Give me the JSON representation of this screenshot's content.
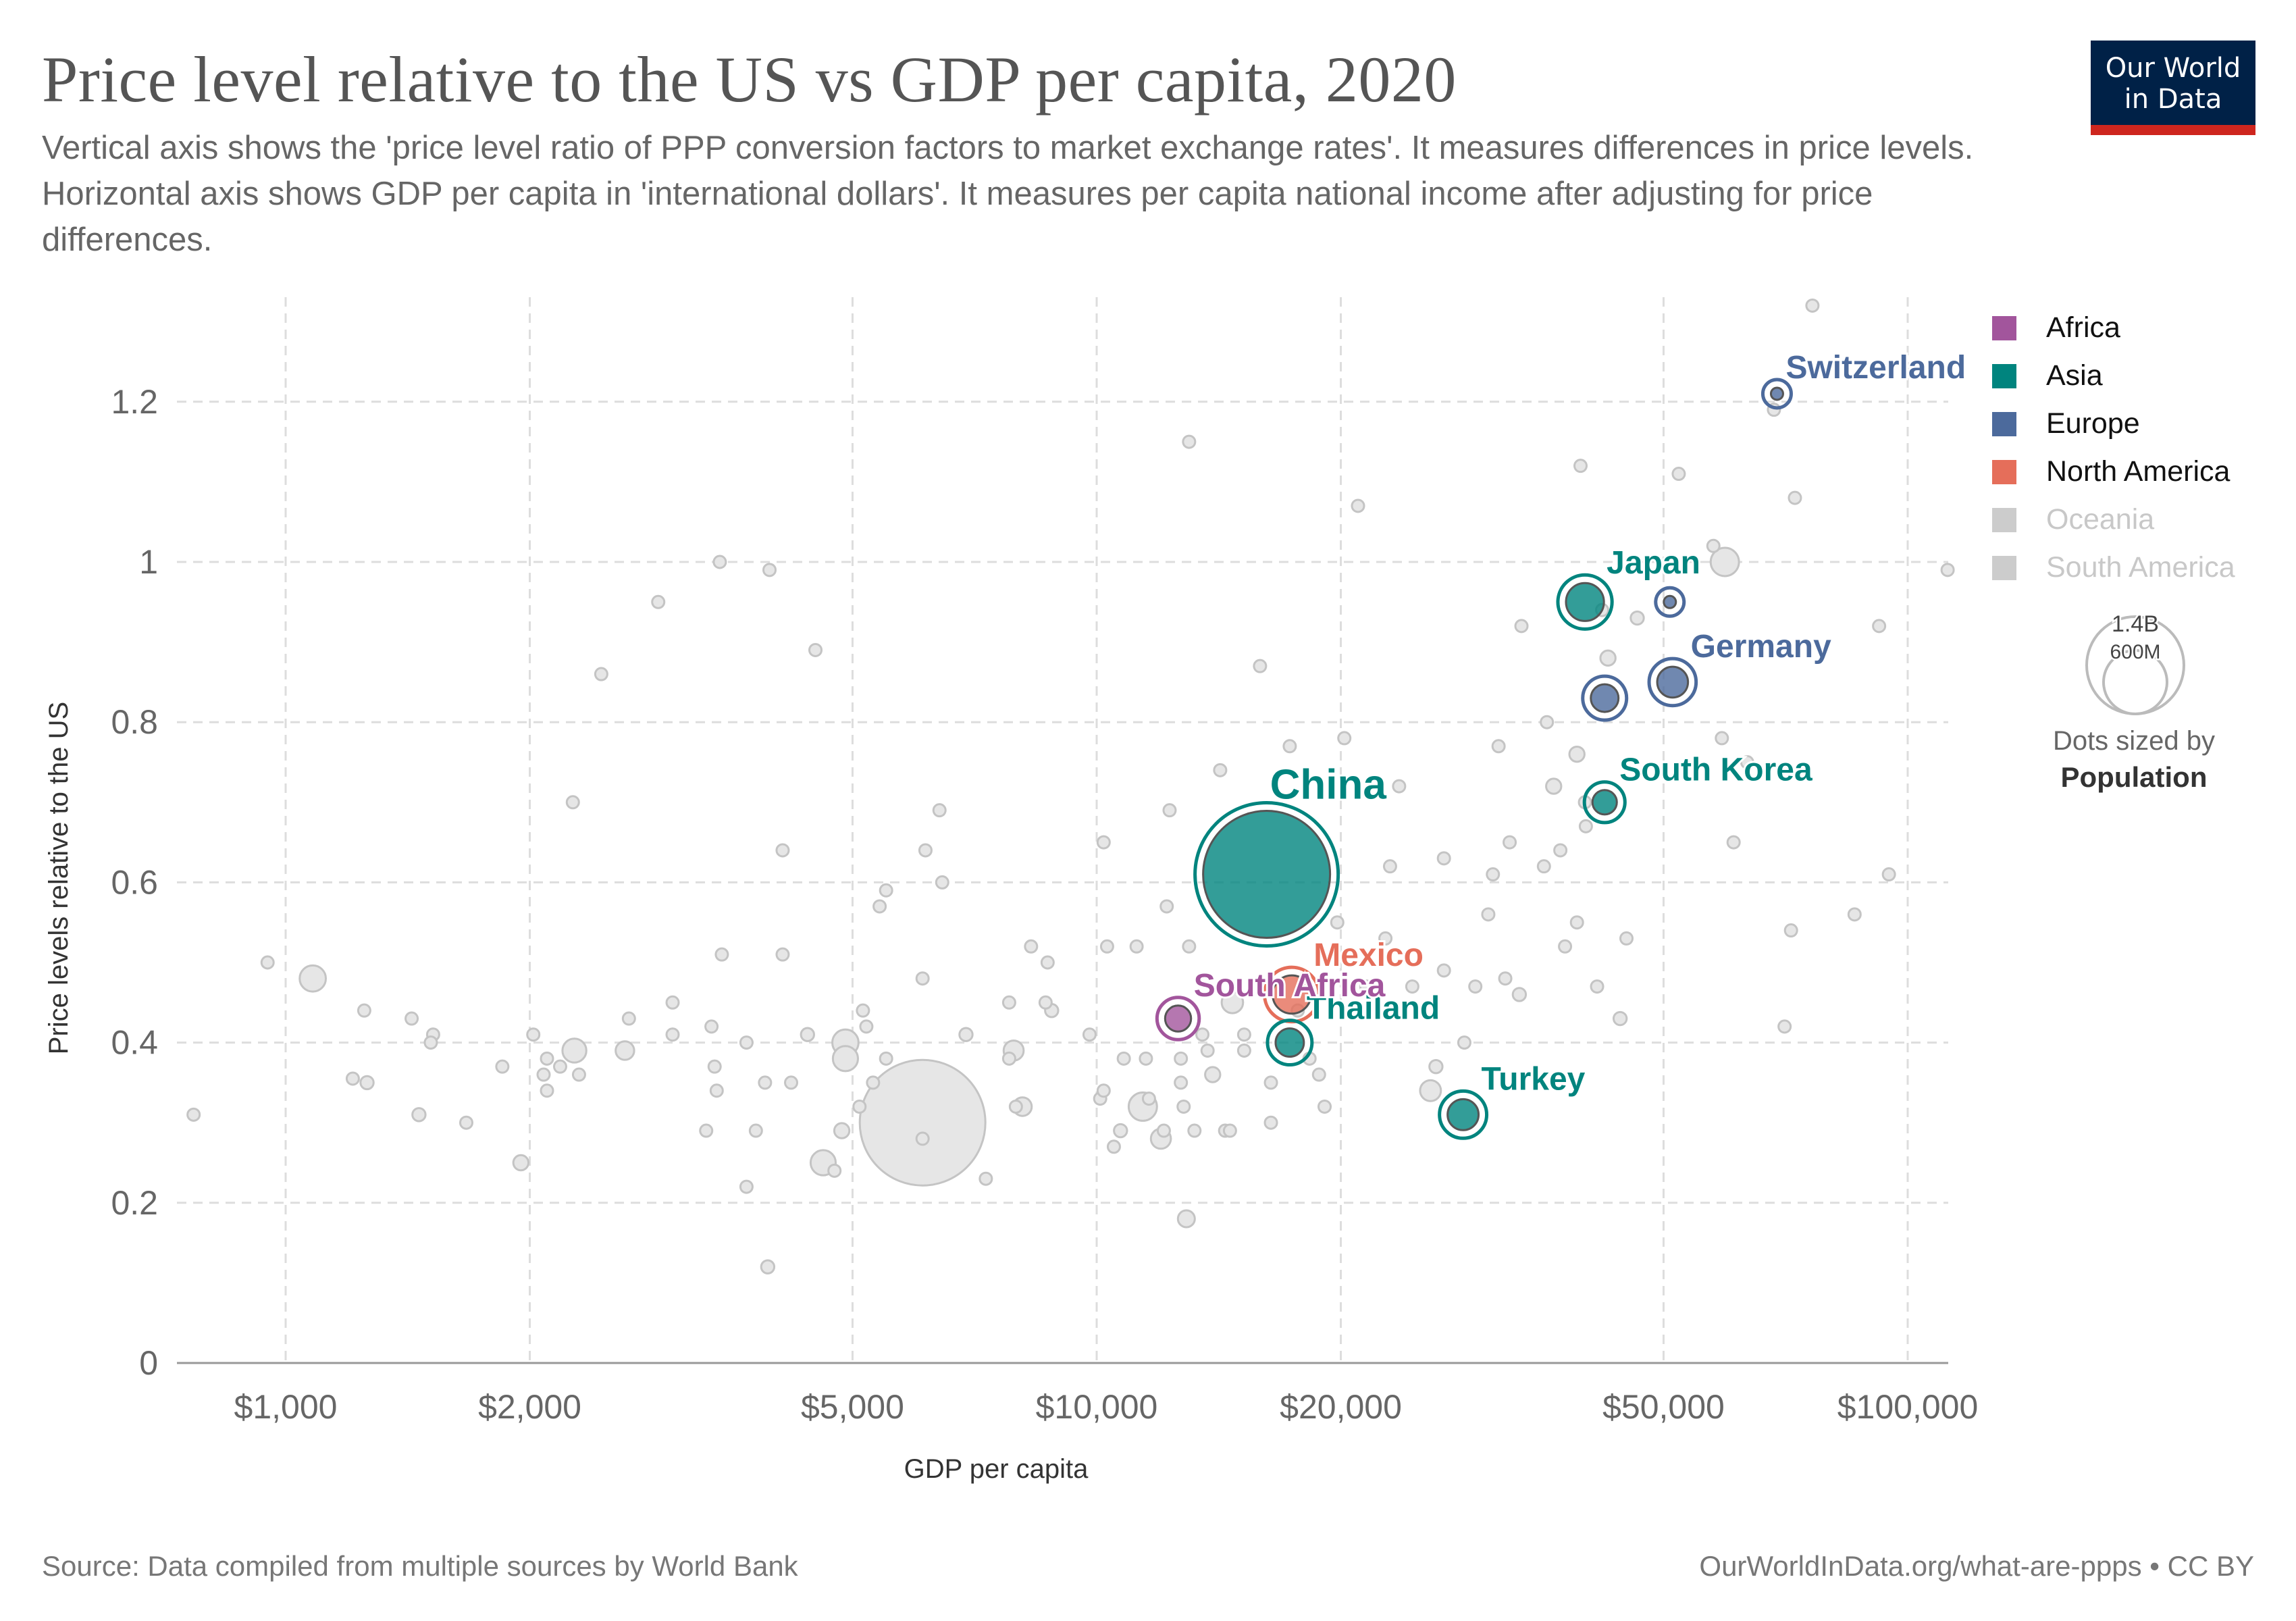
{
  "header": {
    "title": "Price level relative to the US vs GDP per capita, 2020",
    "subtitle": "Vertical axis shows the 'price level ratio of PPP conversion factors to market exchange rates'. It measures differences in price levels. Horizontal axis shows GDP per capita in 'international dollars'. It measures per capita national income after adjusting for price differences."
  },
  "logo": {
    "line1": "Our World",
    "line2": "in Data"
  },
  "footer": {
    "source": "Source: Data compiled from multiple sources by World Bank",
    "credit": "OurWorldInData.org/what-are-ppps • CC BY"
  },
  "chart_data": {
    "type": "scatter",
    "title": "Price level relative to the US vs GDP per capita, 2020",
    "xlabel": "GDP per capita",
    "ylabel": "Price levels relative to the US",
    "x_scale": "log",
    "xlim": [
      720,
      115000
    ],
    "ylim": [
      0,
      1.32
    ],
    "x_ticks": [
      1000,
      2000,
      5000,
      10000,
      20000,
      50000,
      100000
    ],
    "x_tick_labels": [
      "$1,000",
      "$2,000",
      "$5,000",
      "$10,000",
      "$20,000",
      "$50,000",
      "$100,000"
    ],
    "y_ticks": [
      0,
      0.2,
      0.4,
      0.6,
      0.8,
      1,
      1.2
    ],
    "y_tick_labels": [
      "0",
      "0.2",
      "0.4",
      "0.6",
      "0.8",
      "1",
      "1.2"
    ],
    "grid": true,
    "legend_position": "right",
    "legend": [
      {
        "name": "Africa",
        "color": "#a2559c",
        "active": true
      },
      {
        "name": "Asia",
        "color": "#00847e",
        "active": true
      },
      {
        "name": "Europe",
        "color": "#4c6a9c",
        "active": true
      },
      {
        "name": "North America",
        "color": "#e56e5a",
        "active": true
      },
      {
        "name": "Oceania",
        "color": "#cccccc",
        "active": false
      },
      {
        "name": "South America",
        "color": "#cccccc",
        "active": false
      }
    ],
    "size_legend": {
      "title": "Dots sized by",
      "variable": "Population",
      "large_label": "1.4B",
      "small_label": "600M"
    },
    "highlighted": [
      {
        "name": "Switzerland",
        "continent": "Europe",
        "x": 69000,
        "y": 1.21,
        "pop": 8.6,
        "label": true
      },
      {
        "name": "Japan",
        "continent": "Asia",
        "x": 40000,
        "y": 0.95,
        "pop": 126,
        "label": true
      },
      {
        "name": "Germany",
        "continent": "Europe",
        "x": 51300,
        "y": 0.85,
        "pop": 83,
        "label": true
      },
      {
        "name": "",
        "continent": "Europe",
        "x": 42300,
        "y": 0.83,
        "pop": 67,
        "label": false
      },
      {
        "name": "",
        "continent": "Europe",
        "x": 50900,
        "y": 0.95,
        "pop": 10,
        "label": false
      },
      {
        "name": "South Korea",
        "continent": "Asia",
        "x": 42300,
        "y": 0.7,
        "pop": 52,
        "label": true
      },
      {
        "name": "China",
        "continent": "Asia",
        "x": 16200,
        "y": 0.61,
        "pop": 1410,
        "label": true
      },
      {
        "name": "Mexico",
        "continent": "North America",
        "x": 17400,
        "y": 0.46,
        "pop": 128,
        "label": true
      },
      {
        "name": "South Africa",
        "continent": "Africa",
        "x": 12600,
        "y": 0.43,
        "pop": 59,
        "label": true
      },
      {
        "name": "Thailand",
        "continent": "Asia",
        "x": 17300,
        "y": 0.4,
        "pop": 70,
        "label": true
      },
      {
        "name": "Turkey",
        "continent": "Asia",
        "x": 28300,
        "y": 0.31,
        "pop": 84,
        "label": true
      }
    ],
    "background_points": [
      {
        "x": 770,
        "y": 0.31,
        "pop": 12
      },
      {
        "x": 950,
        "y": 0.5,
        "pop": 12
      },
      {
        "x": 1080,
        "y": 0.48,
        "pop": 60
      },
      {
        "x": 1250,
        "y": 0.44,
        "pop": 12
      },
      {
        "x": 1210,
        "y": 0.355,
        "pop": 10
      },
      {
        "x": 1260,
        "y": 0.35,
        "pop": 15
      },
      {
        "x": 1430,
        "y": 0.43,
        "pop": 12
      },
      {
        "x": 1520,
        "y": 0.41,
        "pop": 12
      },
      {
        "x": 1510,
        "y": 0.4,
        "pop": 12
      },
      {
        "x": 1460,
        "y": 0.31,
        "pop": 15
      },
      {
        "x": 1670,
        "y": 0.3,
        "pop": 12
      },
      {
        "x": 1850,
        "y": 0.37,
        "pop": 12
      },
      {
        "x": 1950,
        "y": 0.25,
        "pop": 20
      },
      {
        "x": 2020,
        "y": 0.41,
        "pop": 12
      },
      {
        "x": 2080,
        "y": 0.36,
        "pop": 12
      },
      {
        "x": 2100,
        "y": 0.38,
        "pop": 12
      },
      {
        "x": 2100,
        "y": 0.34,
        "pop": 10
      },
      {
        "x": 2180,
        "y": 0.37,
        "pop": 12
      },
      {
        "x": 2270,
        "y": 0.39,
        "pop": 50
      },
      {
        "x": 2300,
        "y": 0.36,
        "pop": 10
      },
      {
        "x": 2260,
        "y": 0.7,
        "pop": 10
      },
      {
        "x": 2450,
        "y": 0.86,
        "pop": 10
      },
      {
        "x": 2620,
        "y": 0.39,
        "pop": 30
      },
      {
        "x": 2650,
        "y": 0.43,
        "pop": 10
      },
      {
        "x": 2880,
        "y": 0.95,
        "pop": 10
      },
      {
        "x": 3000,
        "y": 0.45,
        "pop": 10
      },
      {
        "x": 3000,
        "y": 0.41,
        "pop": 10
      },
      {
        "x": 3300,
        "y": 0.29,
        "pop": 10
      },
      {
        "x": 3350,
        "y": 0.42,
        "pop": 10
      },
      {
        "x": 3380,
        "y": 0.37,
        "pop": 10
      },
      {
        "x": 3400,
        "y": 0.34,
        "pop": 10
      },
      {
        "x": 3450,
        "y": 0.51,
        "pop": 10
      },
      {
        "x": 3430,
        "y": 1.0,
        "pop": 10
      },
      {
        "x": 3700,
        "y": 0.4,
        "pop": 12
      },
      {
        "x": 3700,
        "y": 0.22,
        "pop": 10
      },
      {
        "x": 3800,
        "y": 0.29,
        "pop": 12
      },
      {
        "x": 3900,
        "y": 0.35,
        "pop": 10
      },
      {
        "x": 3950,
        "y": 0.99,
        "pop": 10
      },
      {
        "x": 3930,
        "y": 0.12,
        "pop": 15
      },
      {
        "x": 4100,
        "y": 0.64,
        "pop": 10
      },
      {
        "x": 4100,
        "y": 0.51,
        "pop": 10
      },
      {
        "x": 4200,
        "y": 0.35,
        "pop": 10
      },
      {
        "x": 4400,
        "y": 0.41,
        "pop": 15
      },
      {
        "x": 4500,
        "y": 0.89,
        "pop": 10
      },
      {
        "x": 4600,
        "y": 0.25,
        "pop": 55
      },
      {
        "x": 4750,
        "y": 0.24,
        "pop": 10
      },
      {
        "x": 4900,
        "y": 0.4,
        "pop": 60
      },
      {
        "x": 4900,
        "y": 0.38,
        "pop": 55
      },
      {
        "x": 4850,
        "y": 0.29,
        "pop": 20
      },
      {
        "x": 5100,
        "y": 0.32,
        "pop": 10
      },
      {
        "x": 5150,
        "y": 0.44,
        "pop": 10
      },
      {
        "x": 5200,
        "y": 0.42,
        "pop": 12
      },
      {
        "x": 5400,
        "y": 0.57,
        "pop": 10
      },
      {
        "x": 5500,
        "y": 0.59,
        "pop": 10
      },
      {
        "x": 5500,
        "y": 0.38,
        "pop": 12
      },
      {
        "x": 5300,
        "y": 0.35,
        "pop": 10
      },
      {
        "x": 6100,
        "y": 0.3,
        "pop": 1380
      },
      {
        "x": 6100,
        "y": 0.28,
        "pop": 10
      },
      {
        "x": 6100,
        "y": 0.48,
        "pop": 10
      },
      {
        "x": 6150,
        "y": 0.64,
        "pop": 10
      },
      {
        "x": 6400,
        "y": 0.69,
        "pop": 10
      },
      {
        "x": 6450,
        "y": 0.6,
        "pop": 10
      },
      {
        "x": 6900,
        "y": 0.41,
        "pop": 15
      },
      {
        "x": 7300,
        "y": 0.23,
        "pop": 12
      },
      {
        "x": 7800,
        "y": 0.45,
        "pop": 10
      },
      {
        "x": 7900,
        "y": 0.39,
        "pop": 35
      },
      {
        "x": 7800,
        "y": 0.38,
        "pop": 12
      },
      {
        "x": 8100,
        "y": 0.32,
        "pop": 30
      },
      {
        "x": 7950,
        "y": 0.32,
        "pop": 10
      },
      {
        "x": 8300,
        "y": 0.52,
        "pop": 10
      },
      {
        "x": 8650,
        "y": 0.45,
        "pop": 10
      },
      {
        "x": 8700,
        "y": 0.5,
        "pop": 10
      },
      {
        "x": 8800,
        "y": 0.44,
        "pop": 15
      },
      {
        "x": 9800,
        "y": 0.41,
        "pop": 10
      },
      {
        "x": 10100,
        "y": 0.33,
        "pop": 10
      },
      {
        "x": 10200,
        "y": 0.65,
        "pop": 10
      },
      {
        "x": 10300,
        "y": 0.52,
        "pop": 10
      },
      {
        "x": 10200,
        "y": 0.34,
        "pop": 10
      },
      {
        "x": 10500,
        "y": 0.27,
        "pop": 10
      },
      {
        "x": 10800,
        "y": 0.38,
        "pop": 10
      },
      {
        "x": 10700,
        "y": 0.29,
        "pop": 15
      },
      {
        "x": 11200,
        "y": 0.52,
        "pop": 12
      },
      {
        "x": 11500,
        "y": 0.38,
        "pop": 10
      },
      {
        "x": 11400,
        "y": 0.32,
        "pop": 70
      },
      {
        "x": 11600,
        "y": 0.33,
        "pop": 10
      },
      {
        "x": 12000,
        "y": 0.28,
        "pop": 35
      },
      {
        "x": 12100,
        "y": 0.29,
        "pop": 12
      },
      {
        "x": 12200,
        "y": 0.57,
        "pop": 10
      },
      {
        "x": 12300,
        "y": 0.69,
        "pop": 10
      },
      {
        "x": 12700,
        "y": 0.38,
        "pop": 10
      },
      {
        "x": 12700,
        "y": 0.35,
        "pop": 10
      },
      {
        "x": 12800,
        "y": 0.32,
        "pop": 10
      },
      {
        "x": 12900,
        "y": 0.18,
        "pop": 25
      },
      {
        "x": 13000,
        "y": 1.15,
        "pop": 10
      },
      {
        "x": 13000,
        "y": 0.52,
        "pop": 10
      },
      {
        "x": 13200,
        "y": 0.29,
        "pop": 12
      },
      {
        "x": 13500,
        "y": 0.41,
        "pop": 10
      },
      {
        "x": 13700,
        "y": 0.39,
        "pop": 10
      },
      {
        "x": 13900,
        "y": 0.36,
        "pop": 20
      },
      {
        "x": 14200,
        "y": 0.74,
        "pop": 10
      },
      {
        "x": 14400,
        "y": 0.29,
        "pop": 10
      },
      {
        "x": 14600,
        "y": 0.29,
        "pop": 10
      },
      {
        "x": 14700,
        "y": 0.45,
        "pop": 40
      },
      {
        "x": 15200,
        "y": 0.39,
        "pop": 10
      },
      {
        "x": 15200,
        "y": 0.41,
        "pop": 10
      },
      {
        "x": 15900,
        "y": 0.87,
        "pop": 10
      },
      {
        "x": 16400,
        "y": 0.3,
        "pop": 10
      },
      {
        "x": 16400,
        "y": 0.35,
        "pop": 10
      },
      {
        "x": 17300,
        "y": 0.77,
        "pop": 10
      },
      {
        "x": 17700,
        "y": 0.44,
        "pop": 10
      },
      {
        "x": 18300,
        "y": 0.38,
        "pop": 10
      },
      {
        "x": 18800,
        "y": 0.36,
        "pop": 10
      },
      {
        "x": 19100,
        "y": 0.32,
        "pop": 10
      },
      {
        "x": 19800,
        "y": 0.55,
        "pop": 10
      },
      {
        "x": 20200,
        "y": 0.78,
        "pop": 10
      },
      {
        "x": 21000,
        "y": 1.07,
        "pop": 10
      },
      {
        "x": 21500,
        "y": 0.47,
        "pop": 10
      },
      {
        "x": 22700,
        "y": 0.53,
        "pop": 10
      },
      {
        "x": 23000,
        "y": 0.62,
        "pop": 10
      },
      {
        "x": 23600,
        "y": 0.72,
        "pop": 10
      },
      {
        "x": 24500,
        "y": 0.47,
        "pop": 10
      },
      {
        "x": 25800,
        "y": 0.34,
        "pop": 38
      },
      {
        "x": 26200,
        "y": 0.37,
        "pop": 15
      },
      {
        "x": 26800,
        "y": 0.49,
        "pop": 10
      },
      {
        "x": 26800,
        "y": 0.63,
        "pop": 10
      },
      {
        "x": 28400,
        "y": 0.4,
        "pop": 10
      },
      {
        "x": 29300,
        "y": 0.47,
        "pop": 10
      },
      {
        "x": 30400,
        "y": 0.56,
        "pop": 10
      },
      {
        "x": 30800,
        "y": 0.61,
        "pop": 10
      },
      {
        "x": 31300,
        "y": 0.77,
        "pop": 10
      },
      {
        "x": 31900,
        "y": 0.48,
        "pop": 10
      },
      {
        "x": 32300,
        "y": 0.65,
        "pop": 10
      },
      {
        "x": 33200,
        "y": 0.46,
        "pop": 15
      },
      {
        "x": 33400,
        "y": 0.92,
        "pop": 10
      },
      {
        "x": 35600,
        "y": 0.62,
        "pop": 10
      },
      {
        "x": 35900,
        "y": 0.8,
        "pop": 10
      },
      {
        "x": 36600,
        "y": 0.72,
        "pop": 20
      },
      {
        "x": 37300,
        "y": 0.64,
        "pop": 10
      },
      {
        "x": 37800,
        "y": 0.52,
        "pop": 10
      },
      {
        "x": 39100,
        "y": 0.55,
        "pop": 10
      },
      {
        "x": 39100,
        "y": 0.76,
        "pop": 20
      },
      {
        "x": 39500,
        "y": 1.12,
        "pop": 10
      },
      {
        "x": 40000,
        "y": 0.7,
        "pop": 10
      },
      {
        "x": 40100,
        "y": 0.67,
        "pop": 10
      },
      {
        "x": 41400,
        "y": 0.47,
        "pop": 10
      },
      {
        "x": 42700,
        "y": 0.88,
        "pop": 20
      },
      {
        "x": 42000,
        "y": 0.94,
        "pop": 10
      },
      {
        "x": 44200,
        "y": 0.43,
        "pop": 15
      },
      {
        "x": 45000,
        "y": 0.53,
        "pop": 10
      },
      {
        "x": 46400,
        "y": 0.93,
        "pop": 15
      },
      {
        "x": 52200,
        "y": 1.11,
        "pop": 10
      },
      {
        "x": 57600,
        "y": 1.02,
        "pop": 12
      },
      {
        "x": 59500,
        "y": 1.0,
        "pop": 70
      },
      {
        "x": 59000,
        "y": 0.78,
        "pop": 10
      },
      {
        "x": 61000,
        "y": 0.65,
        "pop": 10
      },
      {
        "x": 63400,
        "y": 0.75,
        "pop": 10
      },
      {
        "x": 68400,
        "y": 1.19,
        "pop": 10
      },
      {
        "x": 72600,
        "y": 1.08,
        "pop": 10
      },
      {
        "x": 71800,
        "y": 0.54,
        "pop": 10
      },
      {
        "x": 70500,
        "y": 0.42,
        "pop": 10
      },
      {
        "x": 76300,
        "y": 1.32,
        "pop": 10
      },
      {
        "x": 86000,
        "y": 0.56,
        "pop": 10
      },
      {
        "x": 92200,
        "y": 0.92,
        "pop": 10
      },
      {
        "x": 94800,
        "y": 0.61,
        "pop": 10
      },
      {
        "x": 112000,
        "y": 0.99,
        "pop": 10
      }
    ]
  }
}
